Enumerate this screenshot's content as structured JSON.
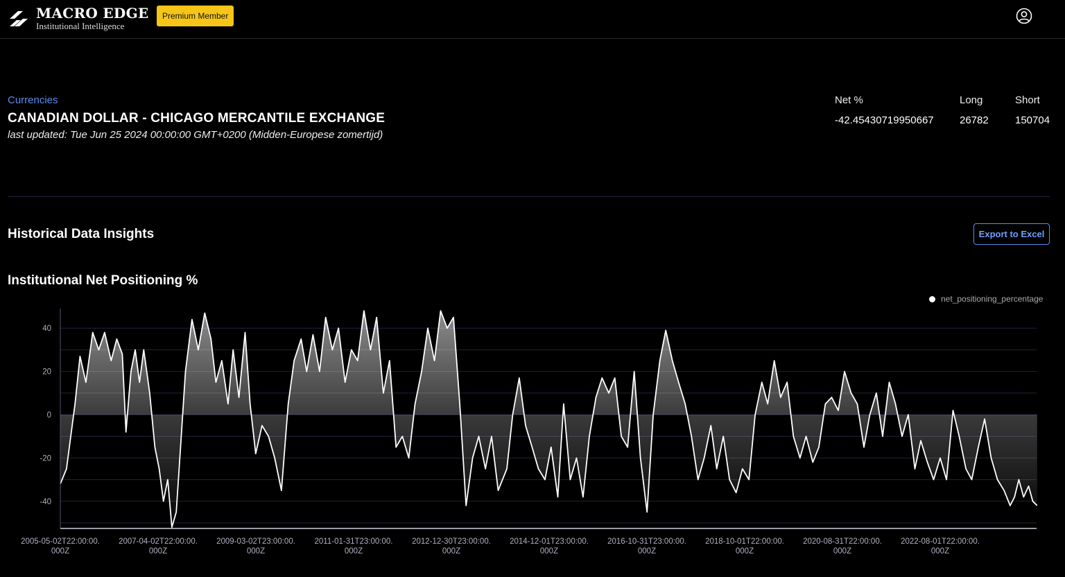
{
  "header": {
    "logo_name": "MACRO EDGE",
    "logo_tagline": "Institutional Intelligence",
    "premium_badge": "Premium Member"
  },
  "instrument": {
    "category": "Currencies",
    "name": "CANADIAN DOLLAR - CHICAGO MERCANTILE EXCHANGE",
    "last_updated": "last updated: Tue Jun 25 2024 00:00:00 GMT+0200 (Midden-Europese zomertijd)"
  },
  "stats": {
    "net_label": "Net %",
    "net_value": "-42.45430719950667",
    "long_label": "Long",
    "long_value": "26782",
    "short_label": "Short",
    "short_value": "150704"
  },
  "section_title": "Historical Data Insights",
  "export_label": "Export to Excel",
  "chart_title": "Institutional Net Positioning %",
  "colors": {
    "accent": "#5b8def",
    "badge": "#f5c518",
    "line": "#ffffff",
    "background": "#000000"
  },
  "chart_data": {
    "type": "area",
    "legend": "net_positioning_percentage",
    "legend_position": "top-right",
    "ylim": [
      -50,
      50
    ],
    "yticks": [
      40,
      20,
      0,
      -20,
      -40
    ],
    "grid": true,
    "xticks": [
      {
        "date": "2005-05-02",
        "line1": "2005-05-02T22:00:00.",
        "line2": "000Z"
      },
      {
        "date": "2007-04-02",
        "line1": "2007-04-02T22:00:00.",
        "line2": "000Z"
      },
      {
        "date": "2009-03-02",
        "line1": "2009-03-02T23:00:00.",
        "line2": "000Z"
      },
      {
        "date": "2011-01-31",
        "line1": "2011-01-31T23:00:00.",
        "line2": "000Z"
      },
      {
        "date": "2012-12-30",
        "line1": "2012-12-30T23:00:00.",
        "line2": "000Z"
      },
      {
        "date": "2014-12-01",
        "line1": "2014-12-01T23:00:00.",
        "line2": "000Z"
      },
      {
        "date": "2016-10-31",
        "line1": "2016-10-31T23:00:00.",
        "line2": "000Z"
      },
      {
        "date": "2018-10-01",
        "line1": "2018-10-01T22:00:00.",
        "line2": "000Z"
      },
      {
        "date": "2020-08-31",
        "line1": "2020-08-31T22:00:00.",
        "line2": "000Z"
      },
      {
        "date": "2022-08-01",
        "line1": "2022-08-01T22:00:00.",
        "line2": "000Z"
      }
    ],
    "series": [
      {
        "name": "net_positioning_percentage",
        "points": [
          [
            "2005-05-02",
            -32
          ],
          [
            "2005-06-15",
            -25
          ],
          [
            "2005-08-15",
            5
          ],
          [
            "2005-09-20",
            27
          ],
          [
            "2005-11-01",
            15
          ],
          [
            "2005-12-20",
            38
          ],
          [
            "2006-02-01",
            30
          ],
          [
            "2006-03-15",
            38
          ],
          [
            "2006-05-01",
            25
          ],
          [
            "2006-06-10",
            35
          ],
          [
            "2006-07-20",
            28
          ],
          [
            "2006-08-15",
            -8
          ],
          [
            "2006-09-20",
            20
          ],
          [
            "2006-10-20",
            30
          ],
          [
            "2006-11-20",
            15
          ],
          [
            "2006-12-20",
            30
          ],
          [
            "2007-02-01",
            10
          ],
          [
            "2007-03-10",
            -15
          ],
          [
            "2007-04-10",
            -25
          ],
          [
            "2007-05-10",
            -40
          ],
          [
            "2007-06-10",
            -30
          ],
          [
            "2007-07-10",
            -52
          ],
          [
            "2007-08-10",
            -45
          ],
          [
            "2007-09-10",
            -15
          ],
          [
            "2007-10-15",
            20
          ],
          [
            "2007-12-01",
            44
          ],
          [
            "2008-01-15",
            30
          ],
          [
            "2008-03-01",
            47
          ],
          [
            "2008-04-15",
            35
          ],
          [
            "2008-05-20",
            15
          ],
          [
            "2008-07-01",
            25
          ],
          [
            "2008-08-15",
            5
          ],
          [
            "2008-09-20",
            30
          ],
          [
            "2008-11-01",
            8
          ],
          [
            "2008-12-15",
            38
          ],
          [
            "2009-01-20",
            5
          ],
          [
            "2009-03-01",
            -18
          ],
          [
            "2009-04-15",
            -5
          ],
          [
            "2009-06-01",
            -10
          ],
          [
            "2009-07-15",
            -20
          ],
          [
            "2009-09-01",
            -35
          ],
          [
            "2009-10-20",
            5
          ],
          [
            "2009-12-01",
            25
          ],
          [
            "2010-01-20",
            35
          ],
          [
            "2010-03-01",
            20
          ],
          [
            "2010-04-15",
            37
          ],
          [
            "2010-06-01",
            20
          ],
          [
            "2010-07-15",
            45
          ],
          [
            "2010-09-01",
            30
          ],
          [
            "2010-10-15",
            40
          ],
          [
            "2010-12-01",
            15
          ],
          [
            "2011-01-15",
            30
          ],
          [
            "2011-03-01",
            25
          ],
          [
            "2011-04-15",
            48
          ],
          [
            "2011-06-01",
            30
          ],
          [
            "2011-07-15",
            45
          ],
          [
            "2011-09-01",
            10
          ],
          [
            "2011-10-15",
            25
          ],
          [
            "2011-12-01",
            -15
          ],
          [
            "2012-01-15",
            -10
          ],
          [
            "2012-03-01",
            -20
          ],
          [
            "2012-04-15",
            5
          ],
          [
            "2012-06-01",
            20
          ],
          [
            "2012-07-15",
            40
          ],
          [
            "2012-09-01",
            25
          ],
          [
            "2012-10-15",
            48
          ],
          [
            "2012-12-01",
            40
          ],
          [
            "2013-01-15",
            45
          ],
          [
            "2013-03-01",
            5
          ],
          [
            "2013-04-15",
            -42
          ],
          [
            "2013-06-01",
            -20
          ],
          [
            "2013-07-15",
            -10
          ],
          [
            "2013-09-01",
            -25
          ],
          [
            "2013-10-15",
            -10
          ],
          [
            "2013-12-01",
            -35
          ],
          [
            "2014-02-01",
            -25
          ],
          [
            "2014-03-15",
            0
          ],
          [
            "2014-05-01",
            17
          ],
          [
            "2014-06-15",
            -5
          ],
          [
            "2014-08-01",
            -15
          ],
          [
            "2014-09-15",
            -25
          ],
          [
            "2014-11-01",
            -30
          ],
          [
            "2014-12-15",
            -15
          ],
          [
            "2015-02-01",
            -38
          ],
          [
            "2015-03-15",
            5
          ],
          [
            "2015-05-01",
            -30
          ],
          [
            "2015-06-15",
            -20
          ],
          [
            "2015-08-01",
            -38
          ],
          [
            "2015-09-15",
            -10
          ],
          [
            "2015-11-01",
            8
          ],
          [
            "2015-12-15",
            17
          ],
          [
            "2016-02-01",
            10
          ],
          [
            "2016-03-15",
            17
          ],
          [
            "2016-05-01",
            -10
          ],
          [
            "2016-06-15",
            -15
          ],
          [
            "2016-08-01",
            20
          ],
          [
            "2016-09-15",
            -20
          ],
          [
            "2016-11-01",
            -45
          ],
          [
            "2016-12-15",
            0
          ],
          [
            "2017-02-01",
            25
          ],
          [
            "2017-03-15",
            39
          ],
          [
            "2017-05-01",
            25
          ],
          [
            "2017-06-15",
            15
          ],
          [
            "2017-08-01",
            5
          ],
          [
            "2017-09-15",
            -10
          ],
          [
            "2017-11-01",
            -30
          ],
          [
            "2017-12-15",
            -20
          ],
          [
            "2018-02-01",
            -5
          ],
          [
            "2018-03-15",
            -25
          ],
          [
            "2018-05-01",
            -10
          ],
          [
            "2018-06-15",
            -30
          ],
          [
            "2018-08-01",
            -36
          ],
          [
            "2018-09-15",
            -25
          ],
          [
            "2018-11-01",
            -30
          ],
          [
            "2018-12-15",
            0
          ],
          [
            "2019-02-01",
            15
          ],
          [
            "2019-03-15",
            5
          ],
          [
            "2019-05-01",
            25
          ],
          [
            "2019-06-15",
            8
          ],
          [
            "2019-08-01",
            15
          ],
          [
            "2019-09-15",
            -10
          ],
          [
            "2019-11-01",
            -20
          ],
          [
            "2019-12-15",
            -10
          ],
          [
            "2020-02-01",
            -22
          ],
          [
            "2020-03-15",
            -15
          ],
          [
            "2020-05-01",
            5
          ],
          [
            "2020-06-15",
            8
          ],
          [
            "2020-08-01",
            2
          ],
          [
            "2020-09-15",
            20
          ],
          [
            "2020-11-01",
            10
          ],
          [
            "2020-12-15",
            5
          ],
          [
            "2021-02-01",
            -15
          ],
          [
            "2021-03-15",
            0
          ],
          [
            "2021-05-01",
            10
          ],
          [
            "2021-06-15",
            -10
          ],
          [
            "2021-08-01",
            15
          ],
          [
            "2021-09-15",
            5
          ],
          [
            "2021-11-01",
            -10
          ],
          [
            "2021-12-15",
            0
          ],
          [
            "2022-02-01",
            -25
          ],
          [
            "2022-03-15",
            -12
          ],
          [
            "2022-05-01",
            -22
          ],
          [
            "2022-06-15",
            -30
          ],
          [
            "2022-08-01",
            -20
          ],
          [
            "2022-09-15",
            -30
          ],
          [
            "2022-11-01",
            2
          ],
          [
            "2022-12-15",
            -10
          ],
          [
            "2023-02-01",
            -25
          ],
          [
            "2023-03-15",
            -30
          ],
          [
            "2023-05-01",
            -15
          ],
          [
            "2023-06-15",
            -2
          ],
          [
            "2023-08-01",
            -20
          ],
          [
            "2023-09-15",
            -30
          ],
          [
            "2023-11-01",
            -35
          ],
          [
            "2023-12-15",
            -42
          ],
          [
            "2024-01-15",
            -38
          ],
          [
            "2024-02-15",
            -30
          ],
          [
            "2024-03-20",
            -38
          ],
          [
            "2024-04-25",
            -33
          ],
          [
            "2024-05-25",
            -40
          ],
          [
            "2024-06-25",
            -42
          ]
        ]
      }
    ]
  }
}
